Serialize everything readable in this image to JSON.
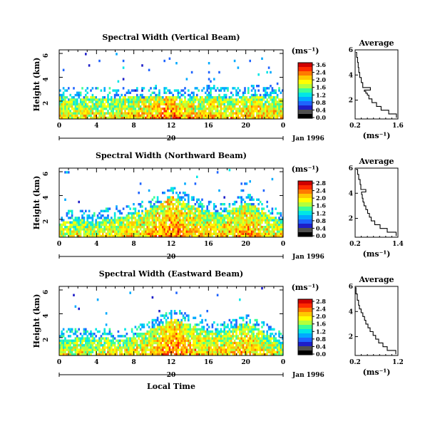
{
  "chart_data": [
    {
      "type": "heatmap",
      "title": "Spectral Width (Vertical Beam)",
      "ylabel": "Height (km)",
      "x_ticks": [
        "0",
        "4",
        "8",
        "12",
        "16",
        "20",
        "0"
      ],
      "y_ticks": [
        "2",
        "4",
        "6"
      ],
      "xlim": [
        0,
        24
      ],
      "ylim": [
        0.5,
        6.3
      ],
      "date_tick": "20",
      "date_label": "Jan 1996",
      "colorbar": {
        "title": "(ms⁻¹)",
        "ticks": [
          "3.6",
          "2.4",
          "2.0",
          "1.6",
          "1.2",
          "0.8",
          "0.4",
          "0.0"
        ],
        "colors": [
          "#d00000",
          "#ff2a00",
          "#ff7a00",
          "#ffc800",
          "#ffff00",
          "#b4ff3c",
          "#3cff96",
          "#00e6e6",
          "#00aaff",
          "#1e64ff",
          "#1e1ec8",
          "#505050",
          "#000000"
        ]
      },
      "field": {
        "top_km": [
          2.3,
          2.2,
          2.1,
          2.3,
          2.2,
          2.2,
          2.1,
          2.3,
          2.3,
          2.2,
          2.4,
          2.2,
          2.3,
          2.2,
          2.2,
          2.3,
          2.4,
          2.3,
          2.2,
          2.2,
          2.3,
          2.4,
          2.2,
          2.3,
          2.1
        ],
        "intensity": [
          0.5,
          0.45,
          0.45,
          0.5,
          0.5,
          0.5,
          0.45,
          0.55,
          0.55,
          0.6,
          0.6,
          0.75,
          0.85,
          0.7,
          0.6,
          0.55,
          0.6,
          0.6,
          0.55,
          0.55,
          0.6,
          0.65,
          0.55,
          0.6,
          0.5
        ]
      }
    },
    {
      "type": "heatmap",
      "title": "Spectral Width (Northward Beam)",
      "ylabel": "Height (km)",
      "x_ticks": [
        "0",
        "4",
        "8",
        "12",
        "16",
        "20",
        "0"
      ],
      "y_ticks": [
        "2",
        "4",
        "6"
      ],
      "xlim": [
        0,
        24
      ],
      "ylim": [
        0.5,
        6.3
      ],
      "date_tick": "20",
      "date_label": "Jan 1996",
      "colorbar": {
        "title": "(ms⁻¹)",
        "ticks": [
          "2.8",
          "2.4",
          "2.0",
          "1.6",
          "1.2",
          "0.8",
          "0.4",
          "0.0"
        ],
        "colors": [
          "#d00000",
          "#ff2a00",
          "#ff7a00",
          "#ffc800",
          "#ffff00",
          "#b4ff3c",
          "#3cff96",
          "#00e6e6",
          "#00aaff",
          "#1e64ff",
          "#1e1ec8",
          "#505050",
          "#000000"
        ]
      },
      "field": {
        "top_km": [
          1.6,
          1.8,
          1.9,
          1.8,
          1.7,
          2.0,
          1.9,
          2.2,
          2.4,
          2.6,
          2.9,
          3.3,
          3.8,
          3.5,
          3.1,
          2.8,
          2.6,
          2.4,
          2.7,
          2.9,
          3.3,
          3.0,
          2.5,
          2.0,
          1.8
        ],
        "intensity": [
          0.45,
          0.45,
          0.5,
          0.5,
          0.5,
          0.5,
          0.55,
          0.55,
          0.55,
          0.6,
          0.6,
          0.7,
          0.8,
          0.7,
          0.6,
          0.6,
          0.55,
          0.55,
          0.6,
          0.6,
          0.65,
          0.6,
          0.55,
          0.5,
          0.5
        ]
      }
    },
    {
      "type": "heatmap",
      "title": "Spectral Width (Eastward Beam)",
      "ylabel": "Height (km)",
      "x_ticks": [
        "0",
        "4",
        "8",
        "12",
        "16",
        "20",
        "0"
      ],
      "y_ticks": [
        "2",
        "4",
        "6"
      ],
      "xlim": [
        0,
        24
      ],
      "ylim": [
        0.5,
        6.3
      ],
      "date_tick": "20",
      "date_label": "Jan 1996",
      "xlabel": "Local Time",
      "colorbar": {
        "title": "(ms⁻¹)",
        "ticks": [
          "2.8",
          "2.4",
          "2.0",
          "1.6",
          "1.2",
          "0.8",
          "0.4",
          "0.0"
        ],
        "colors": [
          "#d00000",
          "#ff2a00",
          "#ff7a00",
          "#ffc800",
          "#ffff00",
          "#b4ff3c",
          "#3cff96",
          "#00e6e6",
          "#00aaff",
          "#1e64ff",
          "#1e1ec8",
          "#505050",
          "#000000"
        ]
      },
      "field": {
        "top_km": [
          1.7,
          1.8,
          2.0,
          1.9,
          1.8,
          1.9,
          1.7,
          1.8,
          2.1,
          2.4,
          2.7,
          3.0,
          3.5,
          3.3,
          2.9,
          2.7,
          2.5,
          2.4,
          2.6,
          2.8,
          3.1,
          2.8,
          2.3,
          1.9,
          1.6
        ],
        "intensity": [
          0.45,
          0.45,
          0.5,
          0.45,
          0.5,
          0.5,
          0.5,
          0.5,
          0.55,
          0.55,
          0.6,
          0.7,
          0.8,
          0.7,
          0.6,
          0.55,
          0.55,
          0.55,
          0.55,
          0.6,
          0.6,
          0.55,
          0.5,
          0.5,
          0.45
        ]
      }
    },
    {
      "type": "line",
      "title": "Average",
      "xlabel": "(ms⁻¹)",
      "x_ticks": [
        "0.2",
        "1.6"
      ],
      "y_ticks": [
        "2",
        "4",
        "6"
      ],
      "xlim": [
        0.2,
        1.6
      ],
      "ylim": [
        0.5,
        6
      ],
      "series": [
        {
          "x": [
            1.55,
            1.3,
            1.05,
            0.9,
            0.75,
            0.65,
            0.6,
            0.55,
            0.5,
            0.7,
            0.45,
            0.4,
            0.35,
            0.32,
            0.3,
            0.28,
            0.25,
            0.22
          ],
          "y": [
            0.6,
            0.9,
            1.2,
            1.5,
            1.8,
            2.1,
            2.4,
            2.55,
            2.7,
            2.8,
            3.0,
            3.4,
            3.8,
            4.2,
            4.6,
            5.0,
            5.4,
            5.8
          ]
        }
      ]
    },
    {
      "type": "line",
      "title": "Average",
      "xlabel": "(ms⁻¹)",
      "x_ticks": [
        "0.2",
        "1.4"
      ],
      "y_ticks": [
        "2",
        "4",
        "6"
      ],
      "xlim": [
        0.2,
        1.4
      ],
      "ylim": [
        0.5,
        6
      ],
      "series": [
        {
          "x": [
            1.35,
            1.1,
            0.9,
            0.75,
            0.65,
            0.6,
            0.55,
            0.5,
            0.45,
            0.42,
            0.4,
            0.38,
            0.5,
            0.36,
            0.34,
            0.3,
            0.27,
            0.22
          ],
          "y": [
            0.6,
            0.9,
            1.2,
            1.5,
            1.8,
            2.1,
            2.4,
            2.7,
            3.0,
            3.3,
            3.6,
            3.9,
            4.1,
            4.3,
            4.7,
            5.1,
            5.5,
            5.9
          ]
        }
      ]
    },
    {
      "type": "line",
      "title": "Average",
      "xlabel": "(ms⁻¹)",
      "x_ticks": [
        "0.2",
        "1.2"
      ],
      "y_ticks": [
        "2",
        "4",
        "6"
      ],
      "xlim": [
        0.2,
        1.2
      ],
      "ylim": [
        0.5,
        6
      ],
      "series": [
        {
          "x": [
            1.15,
            0.95,
            0.85,
            0.75,
            0.68,
            0.62,
            0.55,
            0.5,
            0.45,
            0.42,
            0.38,
            0.34,
            0.3,
            0.28,
            0.25,
            0.22,
            0.2
          ],
          "y": [
            0.6,
            0.9,
            1.2,
            1.5,
            1.8,
            2.1,
            2.4,
            2.7,
            3.0,
            3.3,
            3.6,
            3.9,
            4.2,
            4.5,
            4.9,
            5.4,
            5.9
          ]
        }
      ]
    }
  ]
}
